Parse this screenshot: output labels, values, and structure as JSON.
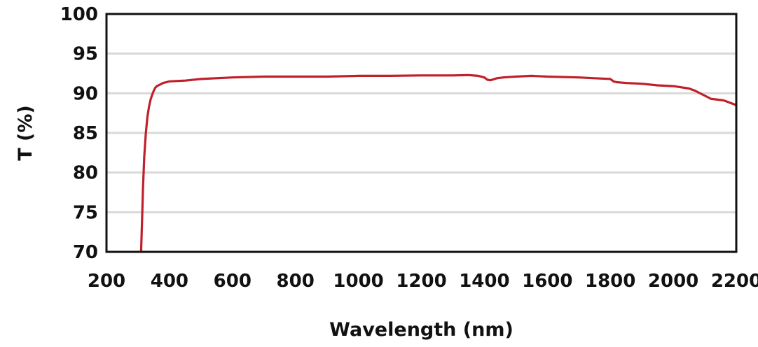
{
  "chart_data": {
    "type": "line",
    "title": "",
    "xlabel": "Wavelength (nm)",
    "ylabel": "T (%)",
    "xlim": [
      200,
      2200
    ],
    "ylim": [
      70,
      100
    ],
    "x_ticks": [
      "200",
      "400",
      "600",
      "800",
      "1000",
      "1200",
      "1400",
      "1600",
      "1800",
      "2000",
      "2200"
    ],
    "y_ticks": [
      "100",
      "95",
      "90",
      "85",
      "80",
      "75",
      "70"
    ],
    "grid": "horizontal",
    "series": [
      {
        "color": "#c0202a",
        "x": [
          310,
          313,
          316,
          320,
          325,
          330,
          335,
          340,
          345,
          350,
          355,
          360,
          370,
          380,
          390,
          400,
          450,
          500,
          600,
          700,
          800,
          900,
          1000,
          1100,
          1200,
          1300,
          1350,
          1380,
          1400,
          1410,
          1420,
          1440,
          1460,
          1500,
          1550,
          1600,
          1700,
          1750,
          1800,
          1810,
          1820,
          1850,
          1900,
          1950,
          2000,
          2050,
          2070,
          2090,
          2110,
          2120,
          2140,
          2160,
          2180,
          2200
        ],
        "y": [
          70.0,
          74.0,
          78.0,
          82.0,
          85.0,
          87.0,
          88.3,
          89.2,
          89.8,
          90.3,
          90.7,
          90.9,
          91.1,
          91.3,
          91.4,
          91.5,
          91.6,
          91.8,
          92.0,
          92.1,
          92.1,
          92.1,
          92.2,
          92.2,
          92.25,
          92.25,
          92.3,
          92.2,
          92.0,
          91.7,
          91.65,
          91.9,
          92.0,
          92.1,
          92.2,
          92.1,
          92.0,
          91.9,
          91.8,
          91.5,
          91.4,
          91.3,
          91.2,
          91.0,
          90.9,
          90.6,
          90.3,
          89.9,
          89.5,
          89.3,
          89.2,
          89.1,
          88.8,
          88.5
        ]
      }
    ]
  }
}
